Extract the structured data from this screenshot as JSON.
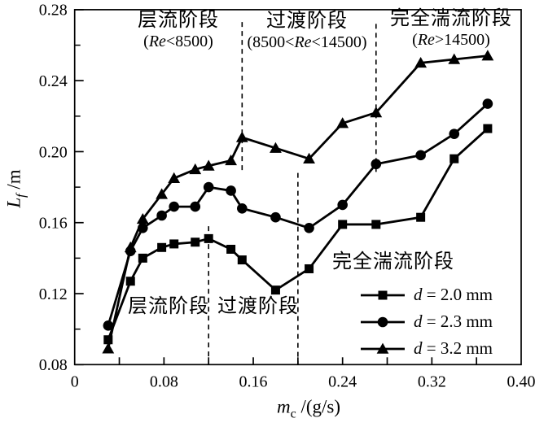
{
  "figure": {
    "background": "#ffffff",
    "ink": "#000000"
  },
  "axes": {
    "y_title": {
      "var": "L",
      "sub": "f",
      "unit": " /m"
    },
    "x_title": {
      "var": "m",
      "sub": "c",
      "unit": " /(g/s)"
    }
  },
  "annotations": {
    "laminar_top": {
      "line1": "层流阶段",
      "pre": "(",
      "it": "Re",
      "post": "<8500)"
    },
    "transition_top": {
      "line1": "过渡阶段",
      "pre": "(8500<",
      "it": "Re",
      "post": "<14500)"
    },
    "turbulent_top": {
      "line1": "完全湍流阶段",
      "pre": "(",
      "it": "Re",
      "post": ">14500)"
    },
    "laminar_bottom": "层流阶段",
    "transition_bottom": "过渡阶段",
    "turbulent_bottom": "完全湍流阶段"
  },
  "legend": {
    "items": [
      {
        "var": "d",
        "rest": " = 2.0 mm",
        "marker": "square"
      },
      {
        "var": "d",
        "rest": " = 2.3 mm",
        "marker": "circle"
      },
      {
        "var": "d",
        "rest": " = 3.2 mm",
        "marker": "triangle"
      }
    ]
  },
  "chart_data": {
    "type": "line",
    "title": "",
    "xlabel": "m_c /(g/s)",
    "ylabel": "L_f /m",
    "xlim": [
      0,
      0.4
    ],
    "ylim": [
      0.08,
      0.28
    ],
    "x_major_ticks": [
      0,
      0.08,
      0.16,
      0.24,
      0.32,
      0.4
    ],
    "x_tick_labels": [
      "0",
      "0.08",
      "0.16",
      "0.24",
      "0.32",
      "0.40"
    ],
    "x_minor_step": 0.04,
    "y_major_ticks": [
      0.08,
      0.12,
      0.16,
      0.2,
      0.24,
      0.28
    ],
    "y_tick_labels": [
      "0.08",
      "0.12",
      "0.16",
      "0.20",
      "0.24",
      "0.28"
    ],
    "y_minor_step": 0.02,
    "grid": false,
    "legend_position": "lower right",
    "x": [
      0.03,
      0.05,
      0.061,
      0.078,
      0.089,
      0.108,
      0.12,
      0.14,
      0.15,
      0.18,
      0.21,
      0.24,
      0.27,
      0.31,
      0.34,
      0.37
    ],
    "series": [
      {
        "name": "d = 2.0 mm",
        "marker": "square",
        "values": [
          0.094,
          0.127,
          0.14,
          0.146,
          0.148,
          0.149,
          0.151,
          0.145,
          0.139,
          0.122,
          0.134,
          0.159,
          0.159,
          0.163,
          0.196,
          0.213
        ]
      },
      {
        "name": "d = 2.3 mm",
        "marker": "circle",
        "values": [
          0.102,
          0.144,
          0.157,
          0.164,
          0.169,
          0.169,
          0.18,
          0.178,
          0.168,
          0.163,
          0.157,
          0.17,
          0.193,
          0.198,
          0.21,
          0.227
        ]
      },
      {
        "name": "d = 3.2 mm",
        "marker": "triangle",
        "values": [
          0.089,
          0.146,
          0.162,
          0.176,
          0.185,
          0.19,
          0.192,
          0.195,
          0.208,
          0.202,
          0.196,
          0.216,
          0.222,
          0.25,
          0.252,
          0.254
        ]
      }
    ],
    "boundary_lines": [
      {
        "name": "upper-laminar-transition",
        "x": 0.15,
        "y1": 0.273,
        "y2": 0.189
      },
      {
        "name": "upper-transition-turbulent",
        "x": 0.27,
        "y1": 0.272,
        "y2": 0.187
      },
      {
        "name": "lower-laminar-transition",
        "x": 0.12,
        "y1": 0.158,
        "y2": 0.08
      },
      {
        "name": "lower-transition-turbulent",
        "x": 0.2,
        "y1": 0.188,
        "y2": 0.08
      }
    ]
  }
}
